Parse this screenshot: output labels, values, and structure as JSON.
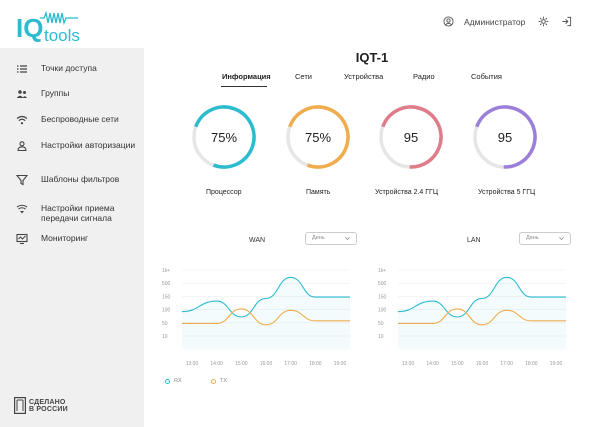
{
  "logo": {
    "text_iq": "IQ",
    "text_tools": "tools"
  },
  "header": {
    "user_name": "Администратор"
  },
  "sidebar": {
    "items": [
      {
        "label": "Точки доступа",
        "icon": "list-icon"
      },
      {
        "label": "Группы",
        "icon": "users-icon"
      },
      {
        "label": "Беспроводные сети",
        "icon": "wifi-icon"
      },
      {
        "label": "Настройки авторизации",
        "icon": "user-icon"
      },
      {
        "label": "Шаблоны фильтров",
        "icon": "filter-icon"
      },
      {
        "label": "Настройки приема передачи сигнала",
        "icon": "signal-icon"
      },
      {
        "label": "Мониторинг",
        "icon": "monitor-icon"
      }
    ],
    "made_in_line1": "СДЕЛАНО",
    "made_in_line2": "В РОССИИ"
  },
  "page": {
    "title": "IQT-1"
  },
  "tabs": [
    "Информация",
    "Сети",
    "Устройства",
    "Радио",
    "События"
  ],
  "active_tab": "Информация",
  "gauges": [
    {
      "value": "75%",
      "label": "Процессор",
      "fraction": 0.75,
      "color": "#2bbcd0"
    },
    {
      "value": "75%",
      "label": "Память",
      "fraction": 0.75,
      "color": "#f0ad4e"
    },
    {
      "value": "95",
      "label": "Устройства 2.4 ГГЦ",
      "fraction": 0.7,
      "color": "#e07b8a"
    },
    {
      "value": "95",
      "label": "Устройства 5 ГГЦ",
      "fraction": 0.7,
      "color": "#9b7fd8"
    }
  ],
  "charts": {
    "wan": {
      "title": "WAN",
      "select": "День"
    },
    "lan": {
      "title": "LAN",
      "select": "День"
    }
  },
  "legend": {
    "rx": "RX",
    "tx": "TX"
  },
  "chart_data": [
    {
      "type": "line",
      "title": "WAN",
      "categories": [
        "13:00",
        "14:00",
        "15:00",
        "16:00",
        "17:00",
        "18:00",
        "19:00"
      ],
      "y_ticks": [
        "1k+",
        "500",
        "150",
        "100",
        "50",
        "10"
      ],
      "series": [
        {
          "name": "RX",
          "color": "#2bbcd0",
          "values": [
            2.0,
            2.8,
            1.6,
            3.0,
            4.6,
            3.1,
            3.1
          ]
        },
        {
          "name": "TX",
          "color": "#f0ad4e",
          "values": [
            1.1,
            1.1,
            2.2,
            1.0,
            2.1,
            1.3,
            1.3
          ]
        }
      ]
    },
    {
      "type": "line",
      "title": "LAN",
      "categories": [
        "13:00",
        "14:00",
        "15:00",
        "16:00",
        "17:00",
        "18:00",
        "19:00"
      ],
      "y_ticks": [
        "1k+",
        "500",
        "150",
        "100",
        "50",
        "10"
      ],
      "series": [
        {
          "name": "RX",
          "color": "#2bbcd0",
          "values": [
            2.0,
            2.8,
            1.6,
            3.0,
            4.6,
            3.1,
            3.1
          ]
        },
        {
          "name": "TX",
          "color": "#f0ad4e",
          "values": [
            1.1,
            1.1,
            2.2,
            1.0,
            2.1,
            1.3,
            1.3
          ]
        }
      ]
    }
  ]
}
